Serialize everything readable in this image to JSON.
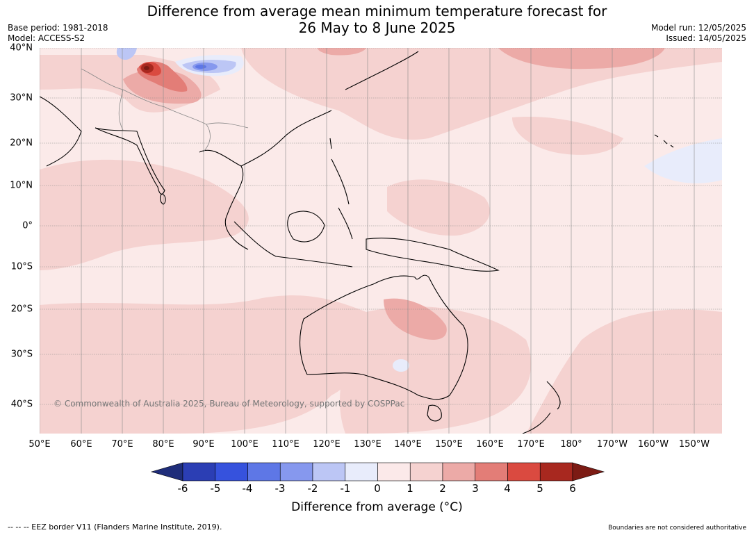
{
  "header": {
    "title_line1": "Difference from average mean minimum temperature forecast for",
    "title_line2": "26 May to 8 June 2025",
    "base_period": "Base period: 1981-2018",
    "model": "Model: ACCESS-S2",
    "model_run": "Model run: 12/05/2025",
    "issued": "Issued: 14/05/2025"
  },
  "map": {
    "lat_labels": [
      "40°N",
      "30°N",
      "20°N",
      "10°N",
      "0°",
      "10°S",
      "20°S",
      "30°S",
      "40°S"
    ],
    "lon_labels": [
      "50°E",
      "60°E",
      "70°E",
      "80°E",
      "90°E",
      "100°E",
      "110°E",
      "120°E",
      "130°E",
      "140°E",
      "150°E",
      "160°E",
      "170°E",
      "180°",
      "170°W",
      "160°W",
      "150°W"
    ],
    "copyright": "© Commonwealth of Australia 2025, Bureau of Meteorology, supported by COSPPac"
  },
  "colorbar": {
    "ticks": [
      "-6",
      "-5",
      "-4",
      "-3",
      "-2",
      "-1",
      "0",
      "1",
      "2",
      "3",
      "4",
      "5",
      "6"
    ],
    "colors": [
      "#1f2d7a",
      "#2b3eb4",
      "#3652dd",
      "#5e77e6",
      "#8698ee",
      "#bcc6f5",
      "#e8ecfb",
      "#fbe9e9",
      "#f5d2d0",
      "#ecaaa7",
      "#e37d77",
      "#da4a40",
      "#a8281f",
      "#7c1b14"
    ],
    "label": "Difference from average (°C)"
  },
  "footer": {
    "eez": "--  --  -- EEZ border V11 (Flanders Marine Institute, 2019).",
    "disclaimer": "Boundaries are not considered authoritative"
  }
}
